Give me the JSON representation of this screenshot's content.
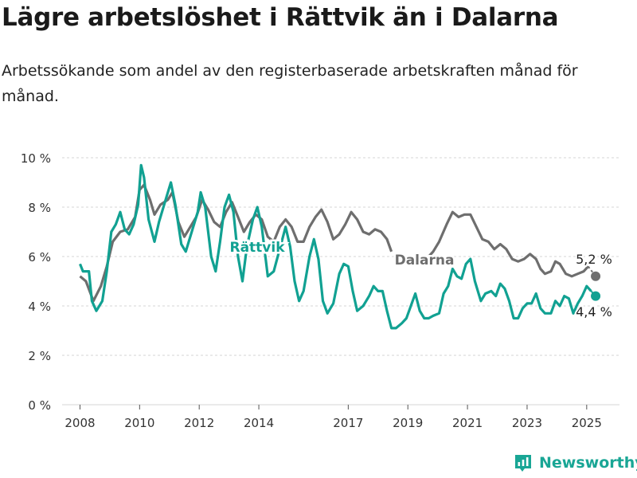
{
  "title": "Lägre arbetslöshet i Rättvik än i Dalarna",
  "subtitle": "Arbetssökande som andel av den registerbaserade arbetskraften månad för månad.",
  "brand": {
    "name": "Newsworthy",
    "icon": "newsworthy-logo-icon",
    "color": "#19a695"
  },
  "chart_data": {
    "type": "line",
    "x_tick_labels": [
      "2008",
      "2010",
      "2012",
      "2014",
      "2017",
      "2019",
      "2021",
      "2023",
      "2025"
    ],
    "x_tick_years": [
      2008.0,
      2010.0,
      2012.0,
      2014.0,
      2017.0,
      2019.0,
      2021.0,
      2023.0,
      2025.0
    ],
    "y_tick_labels": [
      "0 %",
      "2 %",
      "4 %",
      "6 %",
      "8 %",
      "10 %"
    ],
    "y_tick_values": [
      0,
      2,
      4,
      6,
      8,
      10
    ],
    "xlim": [
      2007.4,
      2026.1
    ],
    "ylim": [
      0,
      10
    ],
    "grid": true,
    "series": [
      {
        "name": "Dalarna",
        "color": "#6e6e6e",
        "end_label": "5,2 %",
        "points": [
          [
            2008.0,
            5.2
          ],
          [
            2008.2,
            5.0
          ],
          [
            2008.45,
            4.2
          ],
          [
            2008.7,
            4.8
          ],
          [
            2008.9,
            5.6
          ],
          [
            2009.1,
            6.6
          ],
          [
            2009.35,
            7.0
          ],
          [
            2009.6,
            7.1
          ],
          [
            2009.85,
            7.6
          ],
          [
            2010.0,
            8.7
          ],
          [
            2010.15,
            8.9
          ],
          [
            2010.35,
            8.3
          ],
          [
            2010.5,
            7.7
          ],
          [
            2010.7,
            8.1
          ],
          [
            2010.95,
            8.3
          ],
          [
            2011.1,
            8.6
          ],
          [
            2011.3,
            7.4
          ],
          [
            2011.5,
            6.8
          ],
          [
            2011.7,
            7.2
          ],
          [
            2011.9,
            7.6
          ],
          [
            2012.1,
            8.3
          ],
          [
            2012.3,
            7.9
          ],
          [
            2012.5,
            7.4
          ],
          [
            2012.7,
            7.2
          ],
          [
            2012.9,
            7.8
          ],
          [
            2013.1,
            8.2
          ],
          [
            2013.3,
            7.6
          ],
          [
            2013.5,
            7.0
          ],
          [
            2013.7,
            7.4
          ],
          [
            2013.9,
            7.7
          ],
          [
            2014.1,
            7.5
          ],
          [
            2014.3,
            6.8
          ],
          [
            2014.5,
            6.6
          ],
          [
            2014.7,
            7.2
          ],
          [
            2014.9,
            7.5
          ],
          [
            2015.1,
            7.2
          ],
          [
            2015.3,
            6.6
          ],
          [
            2015.5,
            6.6
          ],
          [
            2015.7,
            7.2
          ],
          [
            2015.9,
            7.6
          ],
          [
            2016.1,
            7.9
          ],
          [
            2016.3,
            7.4
          ],
          [
            2016.5,
            6.7
          ],
          [
            2016.7,
            6.9
          ],
          [
            2016.9,
            7.3
          ],
          [
            2017.1,
            7.8
          ],
          [
            2017.3,
            7.5
          ],
          [
            2017.5,
            7.0
          ],
          [
            2017.7,
            6.9
          ],
          [
            2017.9,
            7.1
          ],
          [
            2018.1,
            7.0
          ],
          [
            2018.3,
            6.7
          ],
          [
            2018.45,
            6.2
          ]
        ],
        "points_after_label": [
          [
            2019.7,
            6.0
          ],
          [
            2019.85,
            6.2
          ],
          [
            2020.05,
            6.6
          ],
          [
            2020.3,
            7.3
          ],
          [
            2020.5,
            7.8
          ],
          [
            2020.7,
            7.6
          ],
          [
            2020.9,
            7.7
          ],
          [
            2021.1,
            7.7
          ],
          [
            2021.3,
            7.2
          ],
          [
            2021.5,
            6.7
          ],
          [
            2021.7,
            6.6
          ],
          [
            2021.9,
            6.3
          ],
          [
            2022.1,
            6.5
          ],
          [
            2022.3,
            6.3
          ],
          [
            2022.5,
            5.9
          ],
          [
            2022.7,
            5.8
          ],
          [
            2022.9,
            5.9
          ],
          [
            2023.1,
            6.1
          ],
          [
            2023.3,
            5.9
          ],
          [
            2023.45,
            5.5
          ],
          [
            2023.6,
            5.3
          ],
          [
            2023.8,
            5.4
          ],
          [
            2023.95,
            5.8
          ],
          [
            2024.1,
            5.7
          ],
          [
            2024.3,
            5.3
          ],
          [
            2024.5,
            5.2
          ],
          [
            2024.7,
            5.3
          ],
          [
            2024.9,
            5.4
          ],
          [
            2025.05,
            5.6
          ]
        ],
        "end_point": [
          2025.3,
          5.2
        ]
      },
      {
        "name": "Rättvik",
        "color": "#11a192",
        "end_label": "4,4 %",
        "points": [
          [
            2008.0,
            5.7
          ],
          [
            2008.1,
            5.4
          ],
          [
            2008.3,
            5.4
          ],
          [
            2008.4,
            4.2
          ],
          [
            2008.55,
            3.8
          ],
          [
            2008.75,
            4.2
          ],
          [
            2008.9,
            5.4
          ],
          [
            2009.05,
            7.0
          ],
          [
            2009.2,
            7.3
          ],
          [
            2009.35,
            7.8
          ],
          [
            2009.5,
            7.1
          ],
          [
            2009.65,
            6.9
          ],
          [
            2009.8,
            7.3
          ],
          [
            2009.95,
            8.1
          ],
          [
            2010.05,
            9.7
          ],
          [
            2010.15,
            9.2
          ],
          [
            2010.3,
            7.5
          ],
          [
            2010.5,
            6.6
          ],
          [
            2010.65,
            7.4
          ],
          [
            2010.85,
            8.2
          ],
          [
            2011.05,
            9.0
          ],
          [
            2011.2,
            8.1
          ],
          [
            2011.4,
            6.5
          ],
          [
            2011.55,
            6.2
          ],
          [
            2011.75,
            7.0
          ],
          [
            2011.95,
            7.8
          ],
          [
            2012.05,
            8.6
          ],
          [
            2012.2,
            8.0
          ],
          [
            2012.4,
            6.0
          ],
          [
            2012.55,
            5.4
          ],
          [
            2012.7,
            6.6
          ],
          [
            2012.85,
            8.0
          ],
          [
            2013.0,
            8.5
          ],
          [
            2013.15,
            7.8
          ],
          [
            2013.3,
            6.0
          ],
          [
            2013.45,
            5.0
          ],
          [
            2013.6,
            6.4
          ],
          [
            2013.8,
            7.5
          ],
          [
            2013.95,
            8.0
          ],
          [
            2014.1,
            7.2
          ],
          [
            2014.3,
            5.2
          ],
          [
            2014.5,
            5.4
          ],
          [
            2014.7,
            6.3
          ],
          [
            2014.9,
            7.2
          ],
          [
            2015.05,
            6.4
          ],
          [
            2015.2,
            5.0
          ],
          [
            2015.35,
            4.2
          ],
          [
            2015.5,
            4.6
          ],
          [
            2015.7,
            6.0
          ],
          [
            2015.85,
            6.7
          ],
          [
            2016.0,
            5.9
          ],
          [
            2016.15,
            4.2
          ],
          [
            2016.3,
            3.7
          ],
          [
            2016.5,
            4.1
          ],
          [
            2016.7,
            5.3
          ],
          [
            2016.85,
            5.7
          ],
          [
            2017.0,
            5.6
          ],
          [
            2017.15,
            4.6
          ],
          [
            2017.3,
            3.8
          ],
          [
            2017.5,
            4.0
          ],
          [
            2017.7,
            4.4
          ],
          [
            2017.85,
            4.8
          ],
          [
            2018.0,
            4.6
          ],
          [
            2018.15,
            4.6
          ],
          [
            2018.3,
            3.8
          ],
          [
            2018.45,
            3.1
          ],
          [
            2018.6,
            3.1
          ],
          [
            2018.8,
            3.3
          ],
          [
            2018.95,
            3.5
          ],
          [
            2019.1,
            4.0
          ],
          [
            2019.25,
            4.5
          ],
          [
            2019.4,
            3.8
          ],
          [
            2019.55,
            3.5
          ],
          [
            2019.7,
            3.5
          ],
          [
            2019.85,
            3.6
          ],
          [
            2020.05,
            3.7
          ],
          [
            2020.2,
            4.5
          ],
          [
            2020.35,
            4.8
          ],
          [
            2020.5,
            5.5
          ],
          [
            2020.65,
            5.2
          ],
          [
            2020.8,
            5.1
          ],
          [
            2020.95,
            5.7
          ],
          [
            2021.1,
            5.9
          ],
          [
            2021.25,
            5.0
          ],
          [
            2021.45,
            4.2
          ],
          [
            2021.6,
            4.5
          ],
          [
            2021.8,
            4.6
          ],
          [
            2021.95,
            4.4
          ],
          [
            2022.1,
            4.9
          ],
          [
            2022.25,
            4.7
          ],
          [
            2022.4,
            4.2
          ],
          [
            2022.55,
            3.5
          ],
          [
            2022.7,
            3.5
          ],
          [
            2022.85,
            3.9
          ],
          [
            2023.0,
            4.1
          ],
          [
            2023.15,
            4.1
          ],
          [
            2023.3,
            4.5
          ],
          [
            2023.45,
            3.9
          ],
          [
            2023.6,
            3.7
          ],
          [
            2023.8,
            3.7
          ],
          [
            2023.95,
            4.2
          ],
          [
            2024.1,
            4.0
          ],
          [
            2024.25,
            4.4
          ],
          [
            2024.4,
            4.3
          ],
          [
            2024.55,
            3.7
          ],
          [
            2024.7,
            4.1
          ],
          [
            2024.85,
            4.4
          ],
          [
            2025.0,
            4.8
          ],
          [
            2025.15,
            4.6
          ]
        ],
        "end_point": [
          2025.3,
          4.4
        ]
      }
    ]
  }
}
